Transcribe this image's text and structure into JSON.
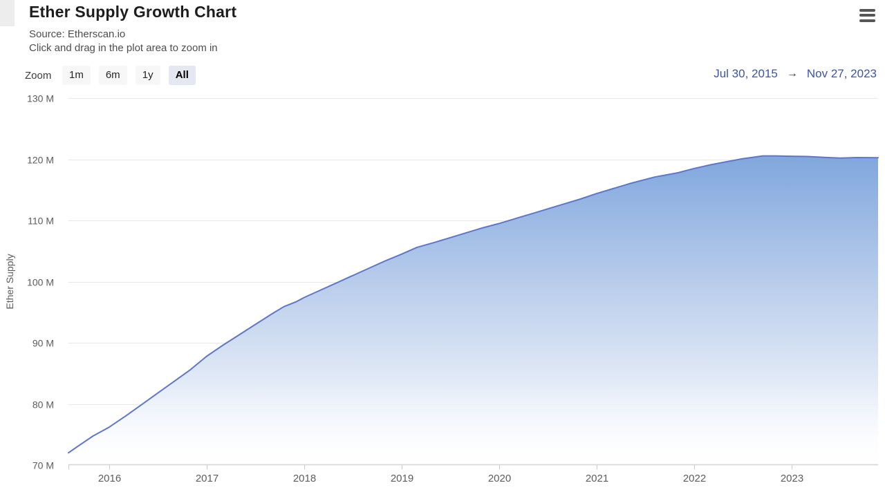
{
  "header": {
    "menu_icon": "hamburger-icon"
  },
  "toolbar": {
    "zoom_label": "Zoom",
    "buttons": [
      "1m",
      "6m",
      "1y",
      "All"
    ],
    "selected": "All",
    "range": {
      "from": "Jul 30, 2015",
      "arrow": "→",
      "to": "Nov 27, 2023"
    }
  },
  "colors": {
    "line": "#5e76c9",
    "area_gradient_top": "#6e9ad9",
    "area_gradient_mid1": "#87abdf",
    "area_gradient_mid2": "#b8cceb",
    "area_gradient_mid3": "#e3ebf7",
    "area_gradient_bottom": "#ffffff",
    "grid": "#e7e7e7",
    "axis_line": "#d5d5d5",
    "tick": "#c9c9c9",
    "axis_text": "#5c5c5c",
    "date_link": "#3a54a8",
    "button_selected_bg": "#e5e8f1"
  },
  "chart_data": {
    "type": "area",
    "title": "Ether Supply Growth Chart",
    "subtitle": [
      "Source: Etherscan.io",
      "Click and drag in the plot area to zoom in"
    ],
    "xlabel": "",
    "ylabel": "Ether Supply",
    "ylim": [
      70,
      130
    ],
    "x_range": [
      "2015-07-30",
      "2023-11-27"
    ],
    "grid": true,
    "legend": false,
    "y_ticks": [
      {
        "value": 70,
        "label": "70 M"
      },
      {
        "value": 80,
        "label": "80 M"
      },
      {
        "value": 90,
        "label": "90 M"
      },
      {
        "value": 100,
        "label": "100 M"
      },
      {
        "value": 110,
        "label": "110 M"
      },
      {
        "value": 120,
        "label": "120 M"
      },
      {
        "value": 130,
        "label": "130 M"
      }
    ],
    "x_ticks": [
      {
        "year": 2016,
        "label": "2016"
      },
      {
        "year": 2017,
        "label": "2017"
      },
      {
        "year": 2018,
        "label": "2018"
      },
      {
        "year": 2019,
        "label": "2019"
      },
      {
        "year": 2020,
        "label": "2020"
      },
      {
        "year": 2021,
        "label": "2021"
      },
      {
        "year": 2022,
        "label": "2022"
      },
      {
        "year": 2023,
        "label": "2023"
      }
    ],
    "series": [
      {
        "name": "Ether Supply",
        "unit": "M",
        "data": [
          [
            "2015-07-30",
            72.0
          ],
          [
            "2015-09-01",
            72.95
          ],
          [
            "2015-11-01",
            74.75
          ],
          [
            "2016-01-01",
            76.2
          ],
          [
            "2016-03-01",
            78.0
          ],
          [
            "2016-05-01",
            79.9
          ],
          [
            "2016-07-01",
            81.8
          ],
          [
            "2016-09-01",
            83.7
          ],
          [
            "2016-11-01",
            85.6
          ],
          [
            "2017-01-01",
            87.8
          ],
          [
            "2017-03-01",
            89.6
          ],
          [
            "2017-05-01",
            91.3
          ],
          [
            "2017-07-01",
            93.0
          ],
          [
            "2017-09-01",
            94.7
          ],
          [
            "2017-10-16",
            95.9
          ],
          [
            "2017-12-01",
            96.7
          ],
          [
            "2018-01-01",
            97.4
          ],
          [
            "2018-03-01",
            98.6
          ],
          [
            "2018-05-01",
            99.8
          ],
          [
            "2018-07-01",
            101.0
          ],
          [
            "2018-09-01",
            102.2
          ],
          [
            "2018-11-01",
            103.4
          ],
          [
            "2019-01-01",
            104.5
          ],
          [
            "2019-02-28",
            105.6
          ],
          [
            "2019-05-01",
            106.4
          ],
          [
            "2019-07-01",
            107.2
          ],
          [
            "2019-09-01",
            108.0
          ],
          [
            "2019-11-01",
            108.8
          ],
          [
            "2020-01-01",
            109.5
          ],
          [
            "2020-03-01",
            110.3
          ],
          [
            "2020-05-01",
            111.1
          ],
          [
            "2020-07-01",
            111.9
          ],
          [
            "2020-09-01",
            112.7
          ],
          [
            "2020-11-01",
            113.5
          ],
          [
            "2021-01-01",
            114.4
          ],
          [
            "2021-03-01",
            115.2
          ],
          [
            "2021-05-01",
            116.0
          ],
          [
            "2021-07-01",
            116.7
          ],
          [
            "2021-08-05",
            117.1
          ],
          [
            "2021-09-01",
            117.3
          ],
          [
            "2021-11-01",
            117.8
          ],
          [
            "2022-01-01",
            118.5
          ],
          [
            "2022-03-01",
            119.1
          ],
          [
            "2022-05-01",
            119.6
          ],
          [
            "2022-07-01",
            120.1
          ],
          [
            "2022-09-15",
            120.55
          ],
          [
            "2022-11-01",
            120.55
          ],
          [
            "2023-01-01",
            120.5
          ],
          [
            "2023-03-01",
            120.45
          ],
          [
            "2023-05-01",
            120.3
          ],
          [
            "2023-07-01",
            120.2
          ],
          [
            "2023-09-01",
            120.28
          ],
          [
            "2023-11-27",
            120.25
          ]
        ]
      }
    ]
  }
}
